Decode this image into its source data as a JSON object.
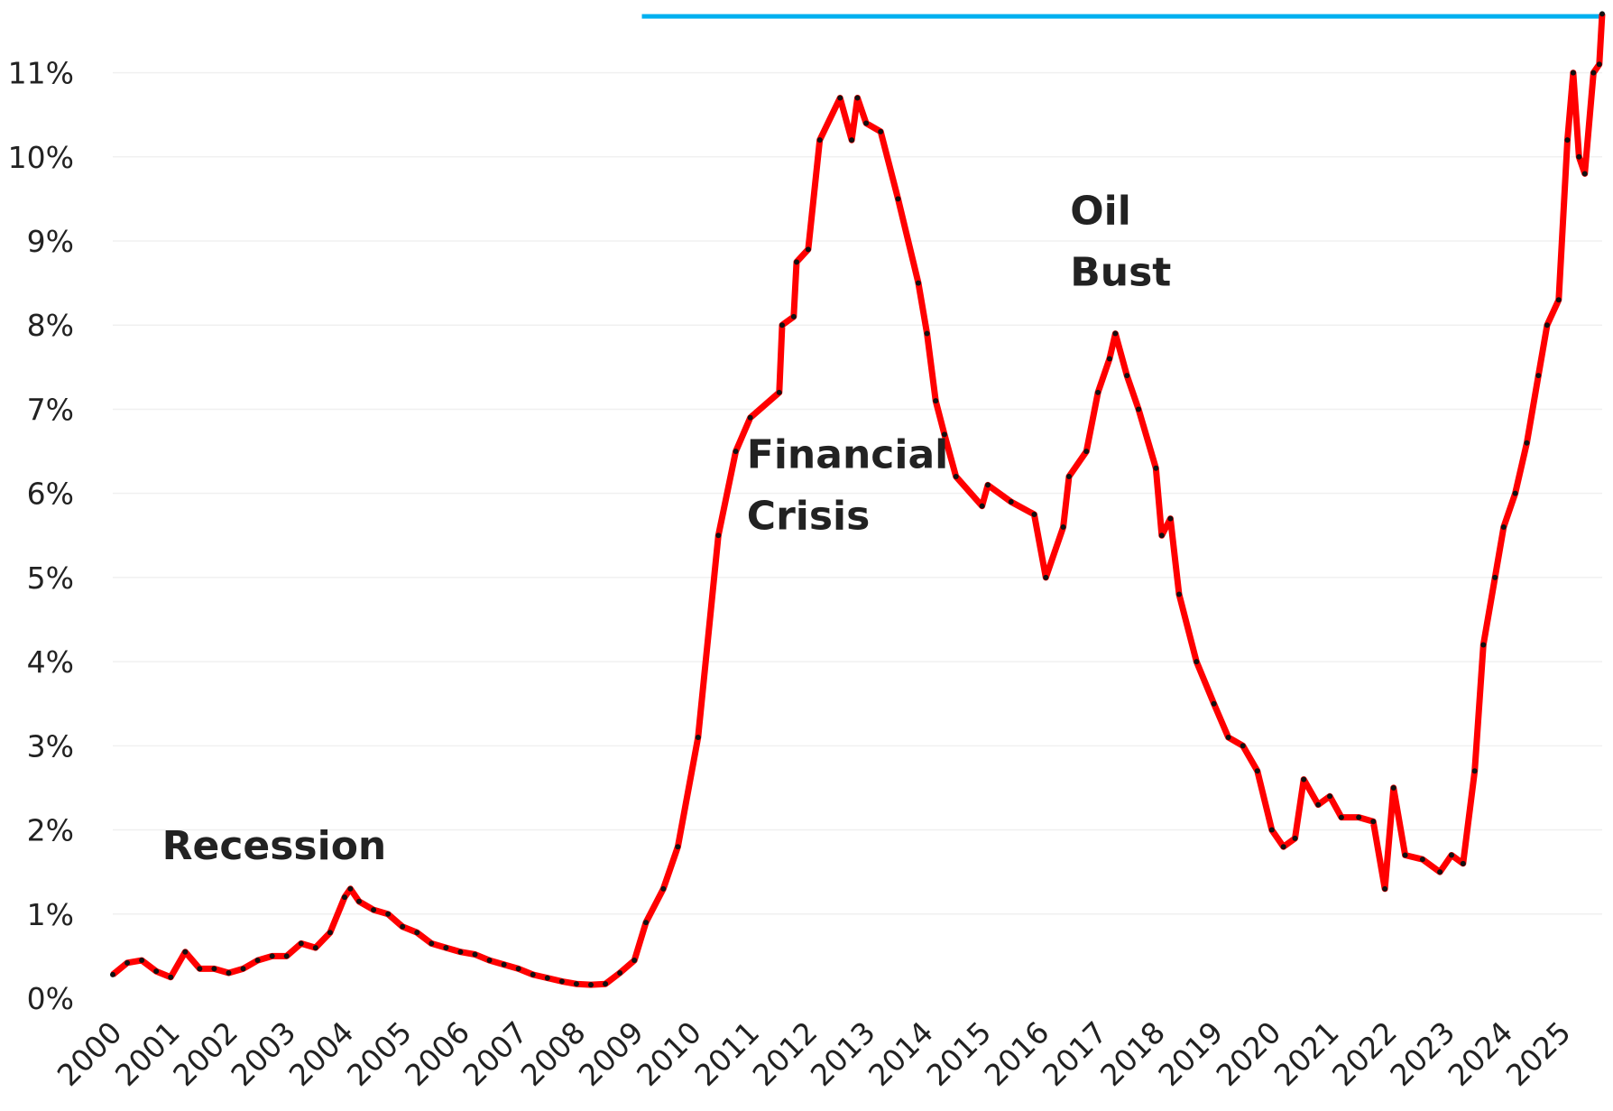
{
  "chart_data": {
    "type": "line",
    "x": [
      2000,
      2000.25,
      2000.5,
      2000.75,
      2001,
      2001.25,
      2001.5,
      2001.75,
      2002,
      2002.25,
      2002.5,
      2002.75,
      2003,
      2003.25,
      2003.5,
      2003.75,
      2004,
      2004.1,
      2004.25,
      2004.5,
      2004.75,
      2005,
      2005.25,
      2005.5,
      2005.75,
      2006,
      2006.25,
      2006.5,
      2006.75,
      2007,
      2007.25,
      2007.5,
      2007.75,
      2008,
      2008.25,
      2008.5,
      2008.75,
      2009,
      2009.2,
      2009.5,
      2009.75,
      2010.1,
      2010.45,
      2010.75,
      2011,
      2011.5,
      2011.55,
      2011.75,
      2011.8,
      2012,
      2012.2,
      2012.55,
      2012.75,
      2012.85,
      2013,
      2013.25,
      2013.55,
      2013.9,
      2014.05,
      2014.2,
      2014.35,
      2014.55,
      2015,
      2015.1,
      2015.5,
      2015.9,
      2016.1,
      2016.4,
      2016.5,
      2016.8,
      2017,
      2017.2,
      2017.3,
      2017.5,
      2017.7,
      2018,
      2018.1,
      2018.25,
      2018.4,
      2018.7,
      2019,
      2019.25,
      2019.5,
      2019.75,
      2020,
      2020.2,
      2020.4,
      2020.55,
      2020.8,
      2021,
      2021.2,
      2021.5,
      2021.75,
      2021.95,
      2022.1,
      2022.3,
      2022.6,
      2022.9,
      2023.1,
      2023.3,
      2023.5,
      2023.65,
      2023.85,
      2024,
      2024.2,
      2024.4,
      2024.6,
      2024.75,
      2024.95,
      2025.1,
      2025.2,
      2025.3,
      2025.4,
      2025.55,
      2025.65,
      2025.7
    ],
    "series": [
      {
        "color": "#ff0000",
        "marker_color": "#111111",
        "values": [
          0.28,
          0.42,
          0.45,
          0.32,
          0.25,
          0.55,
          0.35,
          0.35,
          0.3,
          0.35,
          0.45,
          0.5,
          0.5,
          0.65,
          0.6,
          0.78,
          1.2,
          1.3,
          1.15,
          1.05,
          1.0,
          0.85,
          0.78,
          0.65,
          0.6,
          0.55,
          0.52,
          0.45,
          0.4,
          0.35,
          0.28,
          0.24,
          0.2,
          0.17,
          0.16,
          0.17,
          0.3,
          0.45,
          0.9,
          1.3,
          1.8,
          3.1,
          5.5,
          6.5,
          6.9,
          7.2,
          8.0,
          8.1,
          8.75,
          8.9,
          10.2,
          10.7,
          10.2,
          10.7,
          10.4,
          10.3,
          9.5,
          8.5,
          7.9,
          7.1,
          6.7,
          6.2,
          5.85,
          6.1,
          5.9,
          5.75,
          5.0,
          5.6,
          6.2,
          6.5,
          7.2,
          7.6,
          7.9,
          7.4,
          7.0,
          6.3,
          5.5,
          5.7,
          4.8,
          4.0,
          3.5,
          3.1,
          3.0,
          2.7,
          2.0,
          1.8,
          1.9,
          2.6,
          2.3,
          2.4,
          2.15,
          2.15,
          2.1,
          1.3,
          2.5,
          1.7,
          1.65,
          1.5,
          1.7,
          1.6,
          2.7,
          4.2,
          5.0,
          5.6,
          6.0,
          6.6,
          7.4,
          8.0,
          8.3,
          10.2,
          11.0,
          10.0,
          9.8,
          11.0,
          11.1,
          11.7
        ]
      }
    ],
    "reference_line": {
      "value": 11.67,
      "x_start": 2009.13,
      "color": "#00b0f0"
    },
    "annotations": [
      {
        "lines": [
          "Recession"
        ],
        "x": 2000.85,
        "y": 1.65
      },
      {
        "lines": [
          "Financial",
          "Crisis"
        ],
        "x": 2010.94,
        "y": 6.3
      },
      {
        "lines": [
          "Oil",
          "Bust"
        ],
        "x": 2016.52,
        "y": 9.2
      }
    ],
    "annotation_color": "#ff0000",
    "xlim": [
      2000,
      2025.7
    ],
    "xticks": [
      2000,
      2001,
      2002,
      2003,
      2004,
      2005,
      2006,
      2007,
      2008,
      2009,
      2010,
      2011,
      2012,
      2013,
      2014,
      2015,
      2016,
      2017,
      2018,
      2019,
      2020,
      2021,
      2022,
      2023,
      2024,
      2025
    ],
    "ylim": [
      0,
      11.8
    ],
    "yticks": [
      {
        "value": 0,
        "label": "0%"
      },
      {
        "value": 1,
        "label": "1%"
      },
      {
        "value": 2,
        "label": "2%"
      },
      {
        "value": 3,
        "label": "3%"
      },
      {
        "value": 4,
        "label": "4%"
      },
      {
        "value": 5,
        "label": "5%"
      },
      {
        "value": 6,
        "label": "6%"
      },
      {
        "value": 7,
        "label": "7%"
      },
      {
        "value": 8,
        "label": "8%"
      },
      {
        "value": 9,
        "label": "9%"
      },
      {
        "value": 10,
        "label": "10%"
      },
      {
        "value": 11,
        "label": "11%"
      }
    ],
    "grid": true
  }
}
